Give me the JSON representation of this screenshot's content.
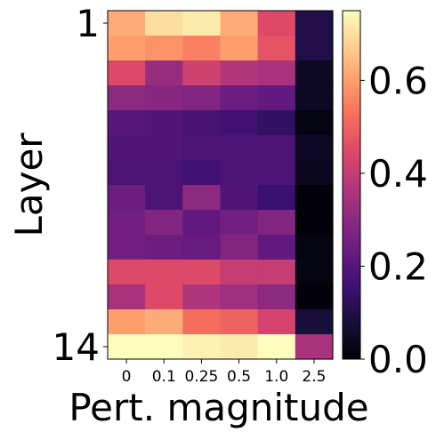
{
  "chart_data": {
    "type": "heatmap",
    "title": "",
    "xlabel": "Pert. magnitude",
    "ylabel": "Layer",
    "x_tick_labels": [
      "0",
      "0.1",
      "0.25",
      "0.5",
      "1.0",
      "2.5"
    ],
    "y_tick_labels": [
      "1",
      "14"
    ],
    "y_tick_rows": [
      1,
      14
    ],
    "colormap": "magma",
    "colorbar": {
      "vmin": 0.0,
      "vmax": 0.75,
      "ticks": [
        0.0,
        0.2,
        0.4,
        0.6
      ],
      "tick_labels": [
        "0.0",
        "0.2",
        "0.4",
        "0.6"
      ]
    },
    "rows": 14,
    "values": [
      [
        0.62,
        0.7,
        0.72,
        0.62,
        0.45,
        0.1
      ],
      [
        0.6,
        0.58,
        0.55,
        0.6,
        0.47,
        0.1
      ],
      [
        0.45,
        0.32,
        0.42,
        0.37,
        0.35,
        0.05
      ],
      [
        0.3,
        0.29,
        0.28,
        0.24,
        0.22,
        0.05
      ],
      [
        0.2,
        0.19,
        0.17,
        0.16,
        0.13,
        0.02
      ],
      [
        0.19,
        0.19,
        0.18,
        0.18,
        0.18,
        0.05
      ],
      [
        0.18,
        0.18,
        0.16,
        0.18,
        0.18,
        0.04
      ],
      [
        0.24,
        0.18,
        0.3,
        0.19,
        0.15,
        0.01
      ],
      [
        0.25,
        0.28,
        0.22,
        0.25,
        0.28,
        0.01
      ],
      [
        0.25,
        0.24,
        0.23,
        0.28,
        0.22,
        0.02
      ],
      [
        0.45,
        0.45,
        0.45,
        0.4,
        0.4,
        0.02
      ],
      [
        0.35,
        0.45,
        0.36,
        0.33,
        0.3,
        0.01
      ],
      [
        0.6,
        0.62,
        0.52,
        0.5,
        0.43,
        0.08
      ],
      [
        0.75,
        0.75,
        0.73,
        0.72,
        0.75,
        0.35
      ]
    ]
  }
}
